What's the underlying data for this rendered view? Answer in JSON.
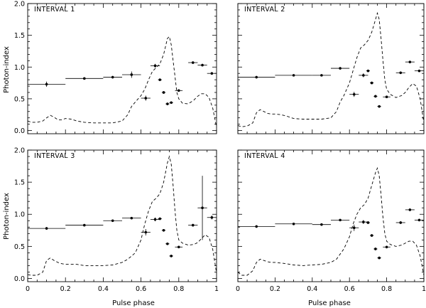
{
  "chart_data": {
    "type": "scatter",
    "layout": "2x2 grid",
    "xlabel": "Pulse phase",
    "ylabel": "Photon-index",
    "xlim": [
      0,
      1
    ],
    "ylim": [
      -0.05,
      2.0
    ],
    "x_ticks": [
      0,
      0.2,
      0.4,
      0.6,
      0.8,
      1
    ],
    "x_tick_labels": [
      "0",
      "0.2",
      "0.4",
      "0.6",
      "0.8",
      "1"
    ],
    "y_ticks": [
      0.0,
      0.5,
      1.0,
      1.5,
      2.0
    ],
    "y_tick_labels": [
      "0.0",
      "0.5",
      "1.0",
      "1.5",
      "2.0"
    ],
    "legend": "none",
    "panels": [
      {
        "title": "INTERVAL 1",
        "points": [
          {
            "x": 0.1,
            "xerr": 0.1,
            "y": 0.73,
            "yerr": 0.04
          },
          {
            "x": 0.3,
            "xerr": 0.1,
            "y": 0.82,
            "yerr": 0.02
          },
          {
            "x": 0.45,
            "xerr": 0.05,
            "y": 0.84,
            "yerr": 0.02
          },
          {
            "x": 0.55,
            "xerr": 0.05,
            "y": 0.88,
            "yerr": 0.05
          },
          {
            "x": 0.625,
            "xerr": 0.025,
            "y": 0.51,
            "yerr": 0.04
          },
          {
            "x": 0.675,
            "xerr": 0.025,
            "y": 1.02,
            "yerr": 0.03
          },
          {
            "x": 0.7,
            "xerr": 0.01,
            "y": 0.8,
            "yerr": 0.02
          },
          {
            "x": 0.72,
            "xerr": 0.01,
            "y": 0.6,
            "yerr": 0.02
          },
          {
            "x": 0.74,
            "xerr": 0.01,
            "y": 0.42,
            "yerr": 0.02
          },
          {
            "x": 0.76,
            "xerr": 0.01,
            "y": 0.44,
            "yerr": 0.02
          },
          {
            "x": 0.8,
            "xerr": 0.02,
            "y": 0.63,
            "yerr": 0.02
          },
          {
            "x": 0.875,
            "xerr": 0.025,
            "y": 1.07,
            "yerr": 0.02
          },
          {
            "x": 0.925,
            "xerr": 0.025,
            "y": 1.03,
            "yerr": 0.02
          },
          {
            "x": 0.975,
            "xerr": 0.025,
            "y": 0.9,
            "yerr": 0.02
          }
        ]
      },
      {
        "title": "INTERVAL 2",
        "points": [
          {
            "x": 0.1,
            "xerr": 0.1,
            "y": 0.84,
            "yerr": 0.02
          },
          {
            "x": 0.3,
            "xerr": 0.1,
            "y": 0.87,
            "yerr": 0.01
          },
          {
            "x": 0.45,
            "xerr": 0.05,
            "y": 0.87,
            "yerr": 0.01
          },
          {
            "x": 0.55,
            "xerr": 0.05,
            "y": 0.98,
            "yerr": 0.02
          },
          {
            "x": 0.625,
            "xerr": 0.025,
            "y": 0.57,
            "yerr": 0.04
          },
          {
            "x": 0.675,
            "xerr": 0.025,
            "y": 0.87,
            "yerr": 0.03
          },
          {
            "x": 0.7,
            "xerr": 0.01,
            "y": 0.94,
            "yerr": 0.02
          },
          {
            "x": 0.72,
            "xerr": 0.01,
            "y": 0.75,
            "yerr": 0.02
          },
          {
            "x": 0.74,
            "xerr": 0.01,
            "y": 0.54,
            "yerr": 0.02
          },
          {
            "x": 0.76,
            "xerr": 0.01,
            "y": 0.38,
            "yerr": 0.02
          },
          {
            "x": 0.8,
            "xerr": 0.02,
            "y": 0.53,
            "yerr": 0.02
          },
          {
            "x": 0.875,
            "xerr": 0.025,
            "y": 0.91,
            "yerr": 0.02
          },
          {
            "x": 0.925,
            "xerr": 0.025,
            "y": 1.08,
            "yerr": 0.02
          },
          {
            "x": 0.975,
            "xerr": 0.025,
            "y": 0.94,
            "yerr": 0.02
          }
        ]
      },
      {
        "title": "INTERVAL 3",
        "points": [
          {
            "x": 0.1,
            "xerr": 0.1,
            "y": 0.78,
            "yerr": 0.02
          },
          {
            "x": 0.3,
            "xerr": 0.1,
            "y": 0.83,
            "yerr": 0.01
          },
          {
            "x": 0.45,
            "xerr": 0.05,
            "y": 0.9,
            "yerr": 0.01
          },
          {
            "x": 0.55,
            "xerr": 0.05,
            "y": 0.94,
            "yerr": 0.01
          },
          {
            "x": 0.625,
            "xerr": 0.025,
            "y": 0.72,
            "yerr": 0.05
          },
          {
            "x": 0.675,
            "xerr": 0.025,
            "y": 0.92,
            "yerr": 0.03
          },
          {
            "x": 0.7,
            "xerr": 0.01,
            "y": 0.93,
            "yerr": 0.02
          },
          {
            "x": 0.72,
            "xerr": 0.01,
            "y": 0.75,
            "yerr": 0.02
          },
          {
            "x": 0.74,
            "xerr": 0.01,
            "y": 0.54,
            "yerr": 0.02
          },
          {
            "x": 0.76,
            "xerr": 0.01,
            "y": 0.35,
            "yerr": 0.02
          },
          {
            "x": 0.8,
            "xerr": 0.02,
            "y": 0.49,
            "yerr": 0.02
          },
          {
            "x": 0.875,
            "xerr": 0.025,
            "y": 0.83,
            "yerr": 0.02
          },
          {
            "x": 0.925,
            "xerr": 0.025,
            "y": 1.1,
            "yerr": 0.5
          },
          {
            "x": 0.975,
            "xerr": 0.025,
            "y": 0.95,
            "yerr": 0.03
          }
        ]
      },
      {
        "title": "INTERVAL 4",
        "points": [
          {
            "x": 0.1,
            "xerr": 0.1,
            "y": 0.81,
            "yerr": 0.02
          },
          {
            "x": 0.3,
            "xerr": 0.1,
            "y": 0.85,
            "yerr": 0.01
          },
          {
            "x": 0.45,
            "xerr": 0.05,
            "y": 0.84,
            "yerr": 0.01
          },
          {
            "x": 0.55,
            "xerr": 0.05,
            "y": 0.91,
            "yerr": 0.01
          },
          {
            "x": 0.625,
            "xerr": 0.025,
            "y": 0.79,
            "yerr": 0.05
          },
          {
            "x": 0.675,
            "xerr": 0.025,
            "y": 0.88,
            "yerr": 0.03
          },
          {
            "x": 0.7,
            "xerr": 0.01,
            "y": 0.87,
            "yerr": 0.02
          },
          {
            "x": 0.72,
            "xerr": 0.01,
            "y": 0.67,
            "yerr": 0.02
          },
          {
            "x": 0.74,
            "xerr": 0.01,
            "y": 0.46,
            "yerr": 0.02
          },
          {
            "x": 0.76,
            "xerr": 0.01,
            "y": 0.32,
            "yerr": 0.02
          },
          {
            "x": 0.8,
            "xerr": 0.02,
            "y": 0.49,
            "yerr": 0.02
          },
          {
            "x": 0.875,
            "xerr": 0.025,
            "y": 0.87,
            "yerr": 0.02
          },
          {
            "x": 0.925,
            "xerr": 0.025,
            "y": 1.07,
            "yerr": 0.02
          },
          {
            "x": 0.975,
            "xerr": 0.025,
            "y": 0.91,
            "yerr": 0.02
          }
        ]
      }
    ],
    "pulse_profile": {
      "style": "dashed",
      "description": "Normalized pulse profile (arbitrary units) overplotted in each panel",
      "phases": [
        0,
        0.02,
        0.05,
        0.08,
        0.1,
        0.12,
        0.14,
        0.16,
        0.18,
        0.2,
        0.23,
        0.26,
        0.3,
        0.35,
        0.4,
        0.45,
        0.5,
        0.53,
        0.55,
        0.57,
        0.6,
        0.62,
        0.64,
        0.66,
        0.68,
        0.7,
        0.72,
        0.74,
        0.75,
        0.76,
        0.77,
        0.78,
        0.79,
        0.8,
        0.82,
        0.85,
        0.88,
        0.9,
        0.92,
        0.94,
        0.96,
        0.98,
        1.0
      ],
      "interval_values": [
        [
          0.15,
          0.13,
          0.13,
          0.15,
          0.2,
          0.24,
          0.21,
          0.17,
          0.17,
          0.19,
          0.18,
          0.15,
          0.13,
          0.12,
          0.12,
          0.12,
          0.15,
          0.25,
          0.38,
          0.45,
          0.55,
          0.65,
          0.8,
          0.93,
          0.99,
          1.05,
          1.2,
          1.45,
          1.48,
          1.35,
          1.1,
          0.85,
          0.6,
          0.5,
          0.43,
          0.42,
          0.48,
          0.54,
          0.58,
          0.58,
          0.52,
          0.35,
          0.05
        ],
        [
          0.08,
          0.06,
          0.07,
          0.12,
          0.28,
          0.33,
          0.3,
          0.27,
          0.26,
          0.26,
          0.25,
          0.23,
          0.19,
          0.18,
          0.18,
          0.18,
          0.2,
          0.3,
          0.45,
          0.55,
          0.75,
          0.95,
          1.15,
          1.3,
          1.35,
          1.42,
          1.55,
          1.75,
          1.85,
          1.75,
          1.45,
          1.1,
          0.8,
          0.65,
          0.57,
          0.52,
          0.55,
          0.6,
          0.68,
          0.74,
          0.7,
          0.5,
          0.12
        ],
        [
          0.06,
          0.05,
          0.05,
          0.1,
          0.28,
          0.32,
          0.28,
          0.25,
          0.23,
          0.22,
          0.22,
          0.22,
          0.2,
          0.2,
          0.2,
          0.21,
          0.25,
          0.3,
          0.35,
          0.4,
          0.6,
          0.85,
          1.05,
          1.2,
          1.25,
          1.32,
          1.5,
          1.8,
          1.9,
          1.78,
          1.45,
          1.05,
          0.75,
          0.6,
          0.55,
          0.52,
          0.53,
          0.56,
          0.62,
          0.68,
          0.64,
          0.45,
          0.08
        ],
        [
          0.1,
          0.05,
          0.05,
          0.12,
          0.25,
          0.3,
          0.28,
          0.26,
          0.25,
          0.25,
          0.24,
          0.23,
          0.21,
          0.2,
          0.21,
          0.22,
          0.25,
          0.3,
          0.38,
          0.46,
          0.65,
          0.85,
          1.0,
          1.1,
          1.15,
          1.25,
          1.45,
          1.65,
          1.72,
          1.6,
          1.3,
          0.95,
          0.7,
          0.58,
          0.53,
          0.5,
          0.52,
          0.55,
          0.58,
          0.58,
          0.52,
          0.35,
          0.05
        ]
      ]
    }
  }
}
